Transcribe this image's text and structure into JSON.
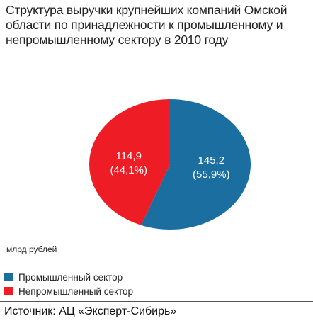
{
  "chart_data": {
    "type": "pie",
    "title_lines": [
      "Структура выручки крупнейших компаний Омской",
      "области по принадлежности к промышленному и",
      "непромышленному сектору в 2010 году"
    ],
    "unit": "млрд рублей",
    "slices": [
      {
        "name": "Промышленный сектор",
        "value": 145.2,
        "value_label": "145,2",
        "percent_label": "(55,9%)",
        "color": "#1b6fa0"
      },
      {
        "name": "Непромышленный сектор",
        "value": 114.9,
        "value_label": "114,9",
        "percent_label": "(44,1%)",
        "color": "#ee1c25"
      }
    ],
    "legend_position": "bottom-left"
  },
  "source": "Источник: АЦ «Эксперт-Сибирь»"
}
